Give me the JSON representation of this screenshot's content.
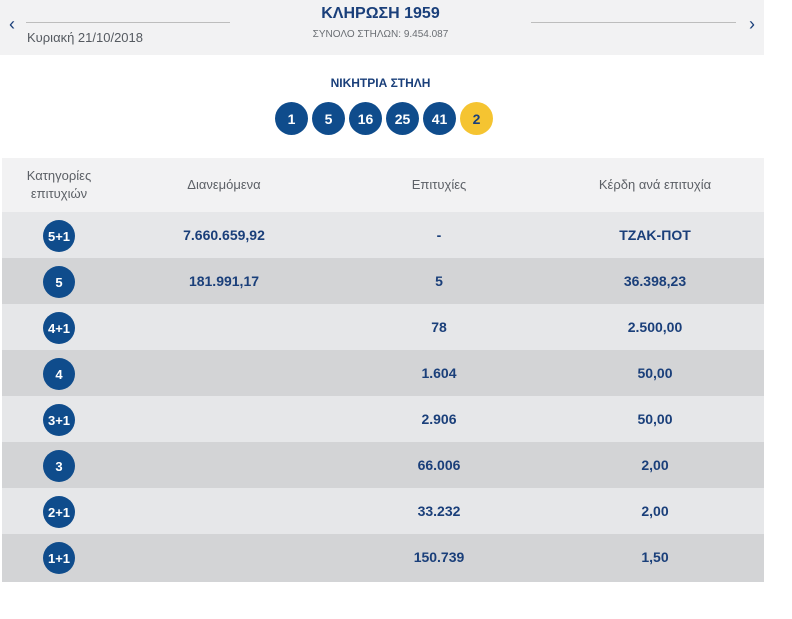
{
  "header": {
    "prev_icon": "‹",
    "next_icon": "›",
    "date": "Κυριακή 21/10/2018",
    "title": "ΚΛΗΡΩΣΗ 1959",
    "columns_total": "ΣΥΝΟΛΟ ΣΤΗΛΩΝ: 9.454.087"
  },
  "winning": {
    "label": "ΝΙΚΗΤΡΙΑ ΣΤΗΛΗ",
    "numbers": [
      "1",
      "5",
      "16",
      "25",
      "41"
    ],
    "joker": "2",
    "colors": {
      "number_ball": "#0f4c8c",
      "joker_ball": "#f5c431"
    }
  },
  "table": {
    "headers": {
      "category": "Κατηγορίες επιτυχιών",
      "distributed": "Διανεμόμενα",
      "winners": "Επιτυχίες",
      "prize": "Κέρδη ανά επιτυχία"
    },
    "rows": [
      {
        "category": "5+1",
        "distributed": "7.660.659,92",
        "winners": "-",
        "prize": "ΤΖΑΚ-ΠΟΤ"
      },
      {
        "category": "5",
        "distributed": "181.991,17",
        "winners": "5",
        "prize": "36.398,23"
      },
      {
        "category": "4+1",
        "distributed": "",
        "winners": "78",
        "prize": "2.500,00"
      },
      {
        "category": "4",
        "distributed": "",
        "winners": "1.604",
        "prize": "50,00"
      },
      {
        "category": "3+1",
        "distributed": "",
        "winners": "2.906",
        "prize": "50,00"
      },
      {
        "category": "3",
        "distributed": "",
        "winners": "66.006",
        "prize": "2,00"
      },
      {
        "category": "2+1",
        "distributed": "",
        "winners": "33.232",
        "prize": "2,00"
      },
      {
        "category": "1+1",
        "distributed": "",
        "winners": "150.739",
        "prize": "1,50"
      }
    ]
  }
}
